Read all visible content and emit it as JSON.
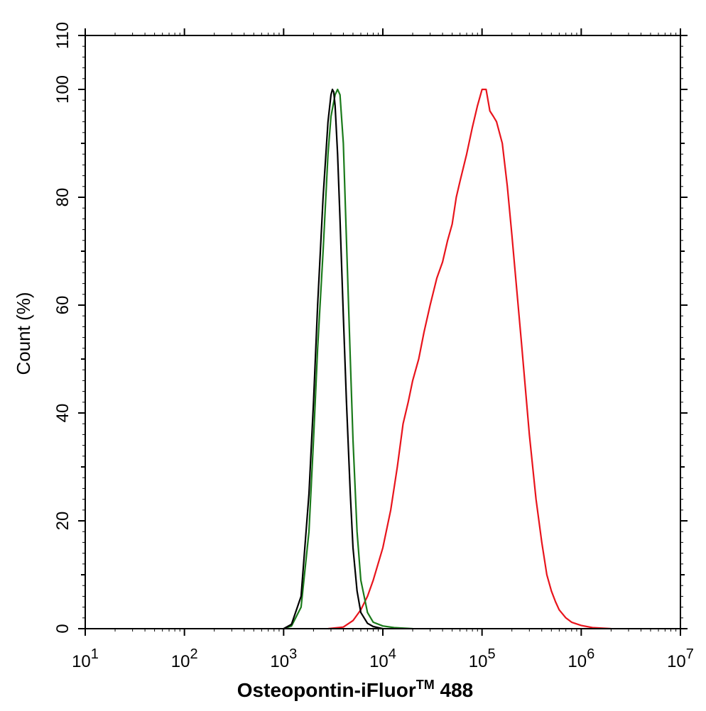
{
  "chart_data": {
    "type": "line",
    "xlabel": "Osteopontin-iFluor™ 488",
    "xlabel_main": "Osteopontin-iFluor",
    "xlabel_sup": "TM",
    "xlabel_suffix": " 488",
    "ylabel": "Count  (%)",
    "x_scale": "log",
    "xlim": [
      10,
      10000000
    ],
    "ylim": [
      0,
      110
    ],
    "grid": false,
    "x_ticks": [
      {
        "base": "10",
        "exp": "1",
        "value": 10
      },
      {
        "base": "10",
        "exp": "2",
        "value": 100
      },
      {
        "base": "10",
        "exp": "3",
        "value": 1000
      },
      {
        "base": "10",
        "exp": "4",
        "value": 10000
      },
      {
        "base": "10",
        "exp": "5",
        "value": 100000
      },
      {
        "base": "10",
        "exp": "6",
        "value": 1000000
      },
      {
        "base": "10",
        "exp": "7",
        "value": 10000000
      }
    ],
    "y_ticks": [
      "0",
      "20",
      "40",
      "60",
      "80",
      "100",
      "110"
    ],
    "series": [
      {
        "color": "#e8141c",
        "x": [
          2800,
          4000,
          5000,
          6000,
          7000,
          8000,
          10000,
          12000,
          14000,
          16000,
          18000,
          20000,
          23000,
          26000,
          30000,
          35000,
          40000,
          45000,
          50000,
          55000,
          60000,
          70000,
          80000,
          90000,
          100000,
          110000,
          120000,
          130000,
          140000,
          160000,
          180000,
          200000,
          250000,
          300000,
          350000,
          400000,
          450000,
          500000,
          550000,
          600000,
          700000,
          800000,
          1000000,
          1300000,
          2000000
        ],
        "y": [
          0,
          0.3,
          1.5,
          3.5,
          6,
          9,
          15,
          22,
          30,
          38,
          42,
          46,
          50,
          55,
          60,
          65,
          68,
          72,
          75,
          80,
          83,
          88,
          93,
          97,
          100,
          100,
          96,
          95,
          94,
          90,
          82,
          73,
          53,
          36,
          24,
          16,
          10,
          7,
          5,
          3.5,
          2,
          1.2,
          0.6,
          0.2,
          0
        ]
      },
      {
        "color": "#1a7a1a",
        "x": [
          1000,
          1200,
          1500,
          1800,
          2000,
          2200,
          2500,
          2800,
          3000,
          3300,
          3500,
          3700,
          4000,
          4300,
          4700,
          5000,
          5500,
          6000,
          7000,
          8000,
          10000,
          13000,
          20000
        ],
        "y": [
          0,
          0.5,
          4,
          18,
          35,
          52,
          70,
          88,
          95,
          99,
          100,
          99,
          90,
          72,
          50,
          35,
          18,
          9,
          3,
          1.2,
          0.5,
          0.2,
          0
        ]
      },
      {
        "color": "#000000",
        "x": [
          1000,
          1200,
          1500,
          1800,
          2000,
          2200,
          2500,
          2800,
          3000,
          3100,
          3200,
          3300,
          3500,
          3700,
          4000,
          4300,
          4700,
          5000,
          5500,
          6000,
          7000,
          8000,
          10000
        ],
        "y": [
          0,
          0.8,
          6,
          25,
          42,
          60,
          80,
          94,
          99,
          100,
          99.5,
          97,
          88,
          76,
          58,
          42,
          25,
          15,
          7,
          3,
          1,
          0.4,
          0
        ]
      }
    ]
  }
}
